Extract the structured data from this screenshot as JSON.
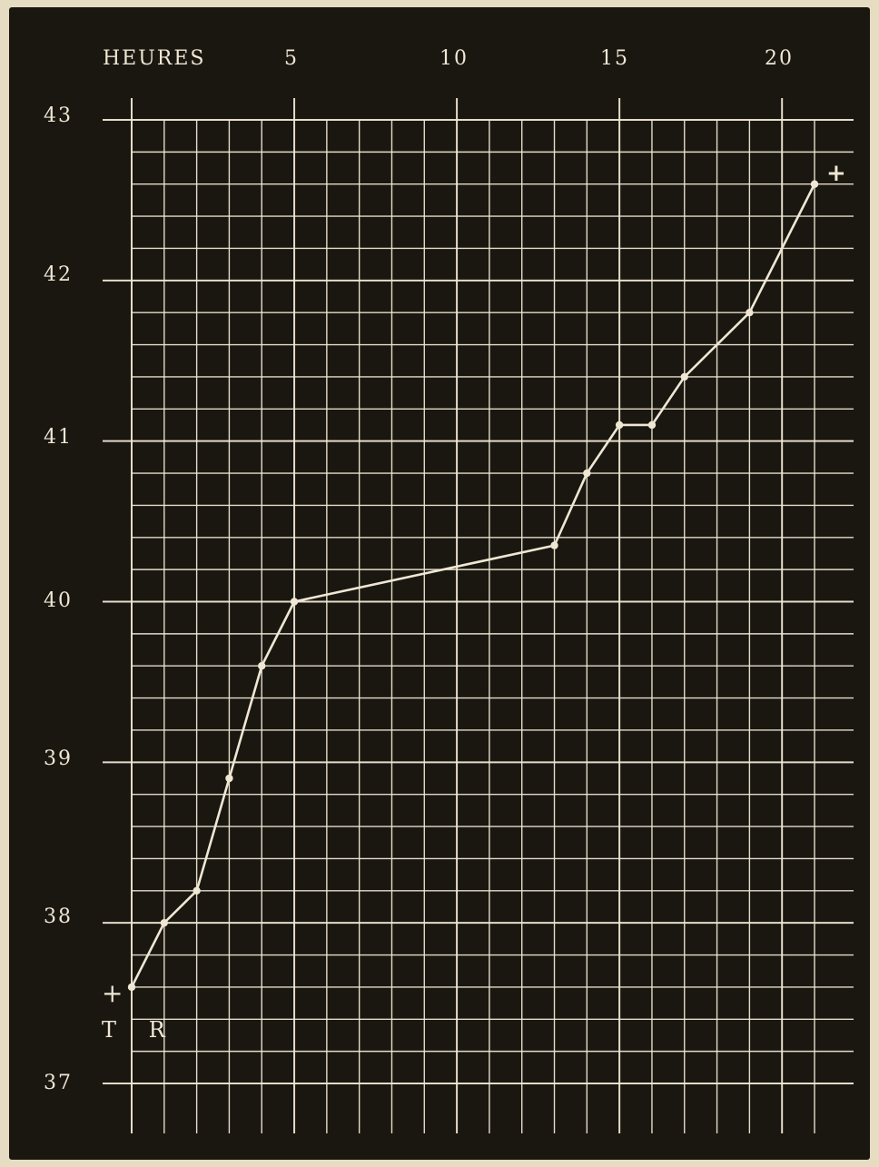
{
  "chart_data": {
    "type": "line",
    "title": "",
    "xlabel": "HEURES",
    "ylabel": "",
    "xlim": [
      0,
      21
    ],
    "ylim": [
      37,
      43
    ],
    "x_ticks": [
      "5",
      "10",
      "15",
      "20"
    ],
    "y_ticks": [
      "37",
      "38",
      "39",
      "40",
      "41",
      "42",
      "43"
    ],
    "grid": true,
    "series": [
      {
        "x": [
          0,
          1,
          2,
          3,
          4,
          5,
          13,
          14,
          15,
          16,
          17,
          19,
          21
        ],
        "y": [
          37.6,
          38.0,
          38.2,
          38.9,
          39.6,
          40.0,
          40.35,
          40.8,
          41.1,
          41.1,
          41.4,
          41.8,
          42.6
        ]
      }
    ],
    "annotations": {
      "start_cross": "+",
      "start_label": "T R",
      "end_cross": "+"
    }
  },
  "colors": {
    "background": "#1a1711",
    "ink": "#efe7d4",
    "paper": "#e6dcc2"
  }
}
